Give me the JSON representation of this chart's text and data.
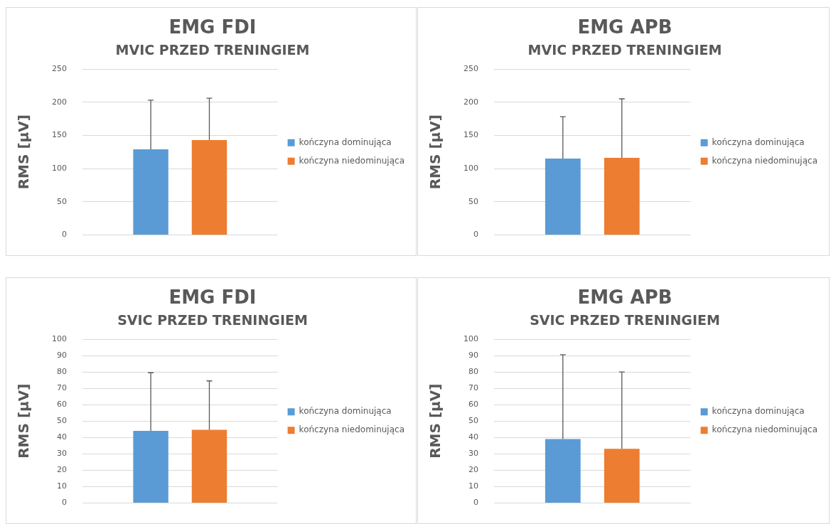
{
  "chart_data": [
    {
      "type": "bar",
      "title": "EMG FDI",
      "subtitle": "MVIC PRZED TRENINGIEM",
      "ylabel": "RMS [μV]",
      "categories": [
        null
      ],
      "ylim": [
        0,
        250
      ],
      "yticks": [
        0,
        50,
        100,
        150,
        200,
        250
      ],
      "grid": "y",
      "legend": "right",
      "series": [
        {
          "name": "kończyna dominująca",
          "color": "#5b9bd5",
          "values": [
            129
          ],
          "errors": [
            [
              129,
              203
            ]
          ]
        },
        {
          "name": "kończyna niedominująca",
          "color": "#ed7d31",
          "values": [
            143
          ],
          "errors": [
            [
              143,
              206
            ]
          ]
        }
      ]
    },
    {
      "type": "bar",
      "title": "EMG APB",
      "subtitle": "MVIC PRZED TRENINGIEM",
      "ylabel": "RMS [μV]",
      "categories": [
        null
      ],
      "ylim": [
        0,
        250
      ],
      "yticks": [
        0,
        50,
        100,
        150,
        200,
        250
      ],
      "grid": "y",
      "legend": "right",
      "series": [
        {
          "name": "kończyna dominująca",
          "color": "#5b9bd5",
          "values": [
            115
          ],
          "errors": [
            [
              115,
              178
            ]
          ]
        },
        {
          "name": "kończyna niedominująca",
          "color": "#ed7d31",
          "values": [
            116
          ],
          "errors": [
            [
              116,
              205
            ]
          ]
        }
      ]
    },
    {
      "type": "bar",
      "title": "EMG FDI",
      "subtitle": "SVIC PRZED TRENINGIEM",
      "ylabel": "RMS [μV]",
      "categories": [
        null
      ],
      "ylim": [
        0,
        100
      ],
      "yticks": [
        0,
        10,
        20,
        30,
        40,
        50,
        60,
        70,
        80,
        90,
        100
      ],
      "grid": "y",
      "legend": "right",
      "series": [
        {
          "name": "kończyna dominująca",
          "color": "#5b9bd5",
          "values": [
            44
          ],
          "errors": [
            [
              44,
              79.5
            ]
          ]
        },
        {
          "name": "kończyna niedominująca",
          "color": "#ed7d31",
          "values": [
            44.7
          ],
          "errors": [
            [
              44.7,
              74.5
            ]
          ]
        }
      ]
    },
    {
      "type": "bar",
      "title": "EMG APB",
      "subtitle": "SVIC PRZED TRENINGIEM",
      "ylabel": "RMS [μV]",
      "categories": [
        null
      ],
      "ylim": [
        0,
        100
      ],
      "yticks": [
        0,
        10,
        20,
        30,
        40,
        50,
        60,
        70,
        80,
        90,
        100
      ],
      "grid": "y",
      "legend": "right",
      "series": [
        {
          "name": "kończyna dominująca",
          "color": "#5b9bd5",
          "values": [
            39
          ],
          "errors": [
            [
              39,
              90.5
            ]
          ]
        },
        {
          "name": "kończyna niedominująca",
          "color": "#ed7d31",
          "values": [
            33
          ],
          "errors": [
            [
              33,
              80
            ]
          ]
        }
      ]
    }
  ]
}
